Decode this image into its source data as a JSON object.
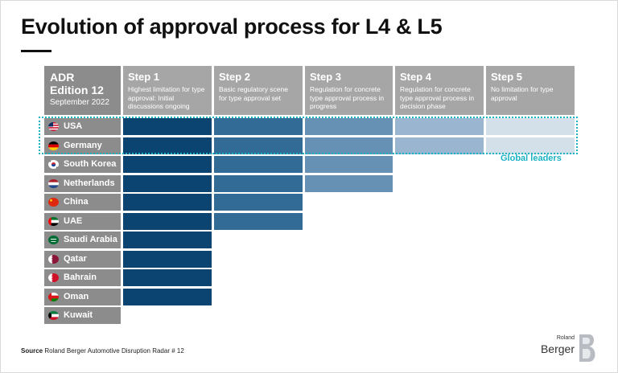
{
  "title": "Evolution of approval process for L4 & L5",
  "corner": {
    "line1": "ADR",
    "line2": "Edition 12",
    "line3": "September 2022"
  },
  "chart_data": {
    "type": "table",
    "steps": [
      {
        "label": "Step 1",
        "desc": "Highest limitation for type approval: Initial discussions ongoing",
        "color": "#0b4470"
      },
      {
        "label": "Step 2",
        "desc": "Basic regulatory scene for type approval set",
        "color": "#336b97"
      },
      {
        "label": "Step 3",
        "desc": "Regulation for concrete type approval process in progress",
        "color": "#6691b5"
      },
      {
        "label": "Step 4",
        "desc": "Regulation for concrete type approval process in decision phase",
        "color": "#9ab5cf"
      },
      {
        "label": "Step 5",
        "desc": "No limitation for type approval",
        "color": "#d3e0ea"
      }
    ],
    "countries": [
      {
        "name": "USA",
        "step": 5,
        "flag": "usa-flag-icon"
      },
      {
        "name": "Germany",
        "step": 5,
        "flag": "germany-flag-icon"
      },
      {
        "name": "South Korea",
        "step": 3,
        "flag": "south-korea-flag-icon"
      },
      {
        "name": "Netherlands",
        "step": 3,
        "flag": "netherlands-flag-icon"
      },
      {
        "name": "China",
        "step": 2,
        "flag": "china-flag-icon"
      },
      {
        "name": "UAE",
        "step": 2,
        "flag": "uae-flag-icon"
      },
      {
        "name": "Saudi Arabia",
        "step": 1,
        "flag": "saudi-arabia-flag-icon"
      },
      {
        "name": "Qatar",
        "step": 1,
        "flag": "qatar-flag-icon"
      },
      {
        "name": "Bahrain",
        "step": 1,
        "flag": "bahrain-flag-icon"
      },
      {
        "name": "Oman",
        "step": 1,
        "flag": "oman-flag-icon"
      },
      {
        "name": "Kuwait",
        "step": 0,
        "flag": "kuwait-flag-icon"
      }
    ],
    "annotation": "Global leaders"
  },
  "source": {
    "label": "Source",
    "text": "Roland Berger Automotive Disruption Radar # 12"
  },
  "logo": {
    "line1": "Roland",
    "line2": "Berger"
  }
}
